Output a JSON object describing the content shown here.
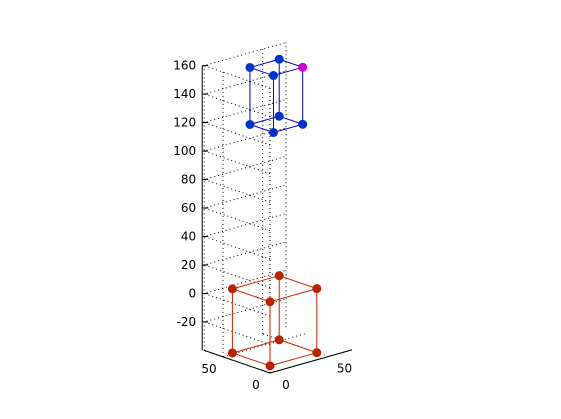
{
  "chart_data": {
    "type": "scatter",
    "projection": "3d",
    "title": "",
    "xlabel": "",
    "ylabel": "",
    "zlabel": "",
    "grid": true,
    "xlim": [
      0,
      70
    ],
    "ylim": [
      0,
      70
    ],
    "zlim": [
      -40,
      160
    ],
    "x_ticks": [
      0,
      50
    ],
    "y_ticks": [
      0,
      50
    ],
    "z_ticks": [
      -20,
      0,
      20,
      40,
      60,
      80,
      100,
      120,
      140,
      160
    ],
    "series": [
      {
        "color": "#cc2200",
        "marker_color": "#bb2200",
        "vertices": [
          [
            0,
            0,
            -35
          ],
          [
            40,
            0,
            -35
          ],
          [
            40,
            40,
            -35
          ],
          [
            0,
            40,
            -35
          ],
          [
            0,
            0,
            10
          ],
          [
            40,
            0,
            10
          ],
          [
            40,
            40,
            10
          ],
          [
            0,
            40,
            10
          ]
        ]
      },
      {
        "color": "#0000cc",
        "marker_color": "#0033cc",
        "highlight_vertex": 5,
        "highlight_color": "#cc00cc",
        "vertices": [
          [
            15,
            15,
            122
          ],
          [
            40,
            15,
            122
          ],
          [
            40,
            40,
            122
          ],
          [
            15,
            40,
            122
          ],
          [
            15,
            15,
            162
          ],
          [
            40,
            15,
            162
          ],
          [
            40,
            40,
            162
          ],
          [
            15,
            40,
            162
          ]
        ]
      }
    ],
    "edges": [
      [
        0,
        1
      ],
      [
        1,
        2
      ],
      [
        2,
        3
      ],
      [
        3,
        0
      ],
      [
        4,
        5
      ],
      [
        5,
        6
      ],
      [
        6,
        7
      ],
      [
        7,
        4
      ],
      [
        0,
        4
      ],
      [
        1,
        5
      ],
      [
        2,
        6
      ],
      [
        3,
        7
      ]
    ]
  }
}
